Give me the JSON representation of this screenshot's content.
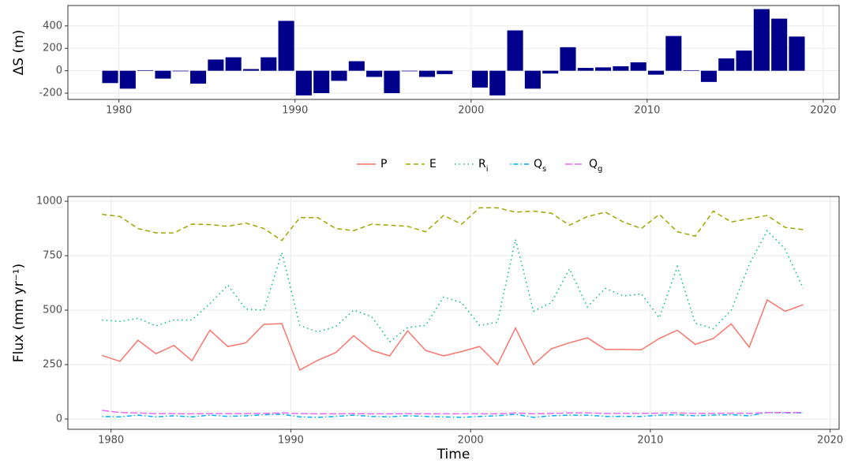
{
  "chart_data": [
    {
      "type": "bar",
      "y_label": "ΔS (m)",
      "color": "#00008B",
      "grid": true,
      "x": [
        1979.5,
        1980.5,
        1981.5,
        1982.5,
        1983.5,
        1984.5,
        1985.5,
        1986.5,
        1987.5,
        1988.5,
        1989.5,
        1990.5,
        1991.5,
        1992.5,
        1993.5,
        1994.5,
        1995.5,
        1996.5,
        1997.5,
        1998.5,
        1999.5,
        2000.5,
        2001.5,
        2002.5,
        2003.5,
        2004.5,
        2005.5,
        2006.5,
        2007.5,
        2008.5,
        2009.5,
        2010.5,
        2011.5,
        2012.5,
        2013.5,
        2014.5,
        2015.5,
        2016.5,
        2017.5,
        2018.5
      ],
      "values": [
        -110,
        -160,
        5,
        -70,
        -5,
        -115,
        100,
        120,
        15,
        120,
        445,
        -220,
        -200,
        -90,
        85,
        -55,
        -200,
        -5,
        -55,
        -30,
        0,
        -150,
        -220,
        360,
        -160,
        -25,
        210,
        25,
        30,
        40,
        75,
        -35,
        310,
        5,
        -100,
        110,
        180,
        550,
        465,
        305
      ],
      "xlim": [
        1977.1,
        2020.9
      ],
      "xticks": [
        1980,
        1990,
        2000,
        2010,
        2020
      ],
      "ylim": [
        -256,
        582
      ],
      "yticks": [
        -200,
        0,
        200,
        400
      ]
    },
    {
      "type": "line",
      "x_label": "Time",
      "y_label": "Flux (mm yr⁻¹)",
      "grid": true,
      "legend": "top",
      "x": [
        1979.5,
        1980.5,
        1981.5,
        1982.5,
        1983.5,
        1984.5,
        1985.5,
        1986.5,
        1987.5,
        1988.5,
        1989.5,
        1990.5,
        1991.5,
        1992.5,
        1993.5,
        1994.5,
        1995.5,
        1996.5,
        1997.5,
        1998.5,
        1999.5,
        2000.5,
        2001.5,
        2002.5,
        2003.5,
        2004.5,
        2005.5,
        2006.5,
        2007.5,
        2008.5,
        2009.5,
        2010.5,
        2011.5,
        2012.5,
        2013.5,
        2014.5,
        2015.5,
        2016.5,
        2017.5,
        2018.5
      ],
      "series": [
        {
          "name": "P",
          "color": "#F8766D",
          "dash": "solid",
          "values": [
            292,
            265,
            362,
            300,
            338,
            268,
            408,
            333,
            350,
            435,
            438,
            225,
            270,
            305,
            383,
            315,
            290,
            405,
            315,
            290,
            310,
            333,
            250,
            418,
            250,
            323,
            350,
            373,
            320,
            320,
            318,
            370,
            408,
            343,
            370,
            437,
            330,
            547,
            495,
            525
          ]
        },
        {
          "name": "E",
          "color": "#A3A500",
          "dash": "dashed",
          "values": [
            940,
            930,
            875,
            855,
            855,
            895,
            893,
            885,
            900,
            875,
            820,
            925,
            925,
            875,
            865,
            895,
            890,
            885,
            860,
            935,
            895,
            970,
            970,
            950,
            955,
            945,
            890,
            930,
            950,
            905,
            875,
            940,
            860,
            840,
            955,
            905,
            920,
            935,
            880,
            870
          ]
        },
        {
          "name": "Ri",
          "color": "#00BF7D",
          "dash": "dotted",
          "values": [
            455,
            448,
            463,
            428,
            455,
            455,
            530,
            615,
            505,
            500,
            765,
            430,
            400,
            425,
            500,
            470,
            355,
            420,
            430,
            560,
            535,
            430,
            445,
            825,
            495,
            535,
            690,
            515,
            600,
            565,
            575,
            465,
            700,
            440,
            415,
            500,
            710,
            865,
            780,
            600
          ]
        },
        {
          "name": "Qs",
          "color": "#00B0F6",
          "dash": "dotdash",
          "values": [
            12,
            10,
            18,
            10,
            15,
            10,
            18,
            12,
            15,
            20,
            22,
            10,
            8,
            12,
            18,
            12,
            10,
            15,
            12,
            10,
            8,
            12,
            15,
            22,
            8,
            15,
            18,
            18,
            12,
            12,
            12,
            18,
            20,
            15,
            18,
            20,
            15,
            30,
            28,
            28
          ]
        },
        {
          "name": "Qg",
          "color": "#E76BF3",
          "dash": "longdash",
          "values": [
            40,
            30,
            28,
            25,
            25,
            24,
            25,
            25,
            25,
            26,
            28,
            25,
            24,
            24,
            25,
            24,
            24,
            25,
            24,
            24,
            24,
            24,
            24,
            28,
            24,
            26,
            28,
            28,
            26,
            26,
            26,
            27,
            28,
            26,
            26,
            27,
            26,
            30,
            30,
            30
          ]
        }
      ],
      "xlim": [
        1977.6,
        2020.5
      ],
      "xticks": [
        1980,
        1990,
        2000,
        2010,
        2020
      ],
      "ylim": [
        -47,
        1022
      ],
      "yticks": [
        0,
        250,
        500,
        750,
        1000
      ]
    }
  ]
}
